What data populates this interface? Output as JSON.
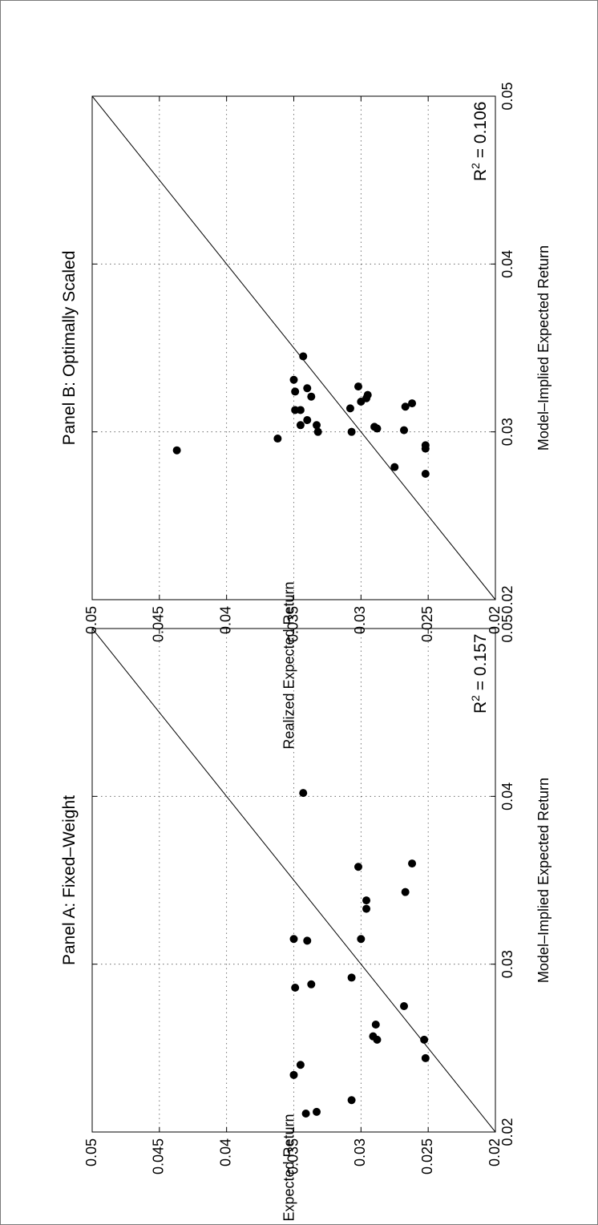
{
  "chart_data": [
    {
      "type": "scatter",
      "title": "Panel A: Fixed–Weight",
      "xlabel": "Model–Implied Expected Return",
      "ylabel": "Realized Expected Return",
      "xlim": [
        0.02,
        0.05
      ],
      "ylim": [
        0.02,
        0.05
      ],
      "xticks": [
        "0.02",
        "0.03",
        "0.04",
        "0.05"
      ],
      "yticks": [
        "0.02",
        "0.025",
        "0.03",
        "0.035",
        "0.04",
        "0.045",
        "0.05"
      ],
      "grid": true,
      "reference_line": "45-degree",
      "annotation": {
        "r2_label": "R",
        "r2_exp": "2",
        "r2_value": " = 0.157"
      },
      "points": [
        {
          "x": 0.0211,
          "y": 0.0341
        },
        {
          "x": 0.0212,
          "y": 0.0333
        },
        {
          "x": 0.0219,
          "y": 0.0307
        },
        {
          "x": 0.0234,
          "y": 0.035
        },
        {
          "x": 0.024,
          "y": 0.0345
        },
        {
          "x": 0.0244,
          "y": 0.0252
        },
        {
          "x": 0.0255,
          "y": 0.0253
        },
        {
          "x": 0.0255,
          "y": 0.0288
        },
        {
          "x": 0.0257,
          "y": 0.0291
        },
        {
          "x": 0.0264,
          "y": 0.0289
        },
        {
          "x": 0.0275,
          "y": 0.0268
        },
        {
          "x": 0.0286,
          "y": 0.0349
        },
        {
          "x": 0.0288,
          "y": 0.0337
        },
        {
          "x": 0.0292,
          "y": 0.0307
        },
        {
          "x": 0.0315,
          "y": 0.035
        },
        {
          "x": 0.0315,
          "y": 0.03
        },
        {
          "x": 0.0314,
          "y": 0.034
        },
        {
          "x": 0.0333,
          "y": 0.0296
        },
        {
          "x": 0.0338,
          "y": 0.0296
        },
        {
          "x": 0.0343,
          "y": 0.0267
        },
        {
          "x": 0.0358,
          "y": 0.0302
        },
        {
          "x": 0.036,
          "y": 0.0262
        },
        {
          "x": 0.0402,
          "y": 0.0343
        }
      ]
    },
    {
      "type": "scatter",
      "title": "Panel B: Optimally Scaled",
      "xlabel": "Model–Implied Expected Return",
      "ylabel": "Realized Expected Return",
      "xlim": [
        0.02,
        0.05
      ],
      "ylim": [
        0.02,
        0.05
      ],
      "xticks": [
        "0.02",
        "0.03",
        "0.04",
        "0.05"
      ],
      "yticks": [
        "0.02",
        "0.025",
        "0.03",
        "0.035",
        "0.04",
        "0.045",
        "0.05"
      ],
      "grid": true,
      "reference_line": "45-degree",
      "annotation": {
        "r2_label": "R",
        "r2_exp": "2",
        "r2_value": " = 0.106"
      },
      "points": [
        {
          "x": 0.0275,
          "y": 0.0252
        },
        {
          "x": 0.0279,
          "y": 0.0275
        },
        {
          "x": 0.0289,
          "y": 0.0437
        },
        {
          "x": 0.029,
          "y": 0.0252
        },
        {
          "x": 0.0292,
          "y": 0.0252
        },
        {
          "x": 0.0296,
          "y": 0.0362
        },
        {
          "x": 0.03,
          "y": 0.0332
        },
        {
          "x": 0.03,
          "y": 0.0307
        },
        {
          "x": 0.0301,
          "y": 0.0268
        },
        {
          "x": 0.0302,
          "y": 0.0288
        },
        {
          "x": 0.0303,
          "y": 0.029
        },
        {
          "x": 0.0304,
          "y": 0.0345
        },
        {
          "x": 0.0304,
          "y": 0.0333
        },
        {
          "x": 0.0307,
          "y": 0.034
        },
        {
          "x": 0.0313,
          "y": 0.0349
        },
        {
          "x": 0.0313,
          "y": 0.0345
        },
        {
          "x": 0.0314,
          "y": 0.0308
        },
        {
          "x": 0.0315,
          "y": 0.0267
        },
        {
          "x": 0.0317,
          "y": 0.0262
        },
        {
          "x": 0.0318,
          "y": 0.03
        },
        {
          "x": 0.032,
          "y": 0.0296
        },
        {
          "x": 0.0321,
          "y": 0.0337
        },
        {
          "x": 0.0322,
          "y": 0.0295
        },
        {
          "x": 0.0324,
          "y": 0.0349
        },
        {
          "x": 0.0326,
          "y": 0.034
        },
        {
          "x": 0.0327,
          "y": 0.0302
        },
        {
          "x": 0.0331,
          "y": 0.035
        },
        {
          "x": 0.0345,
          "y": 0.0343
        }
      ]
    }
  ]
}
